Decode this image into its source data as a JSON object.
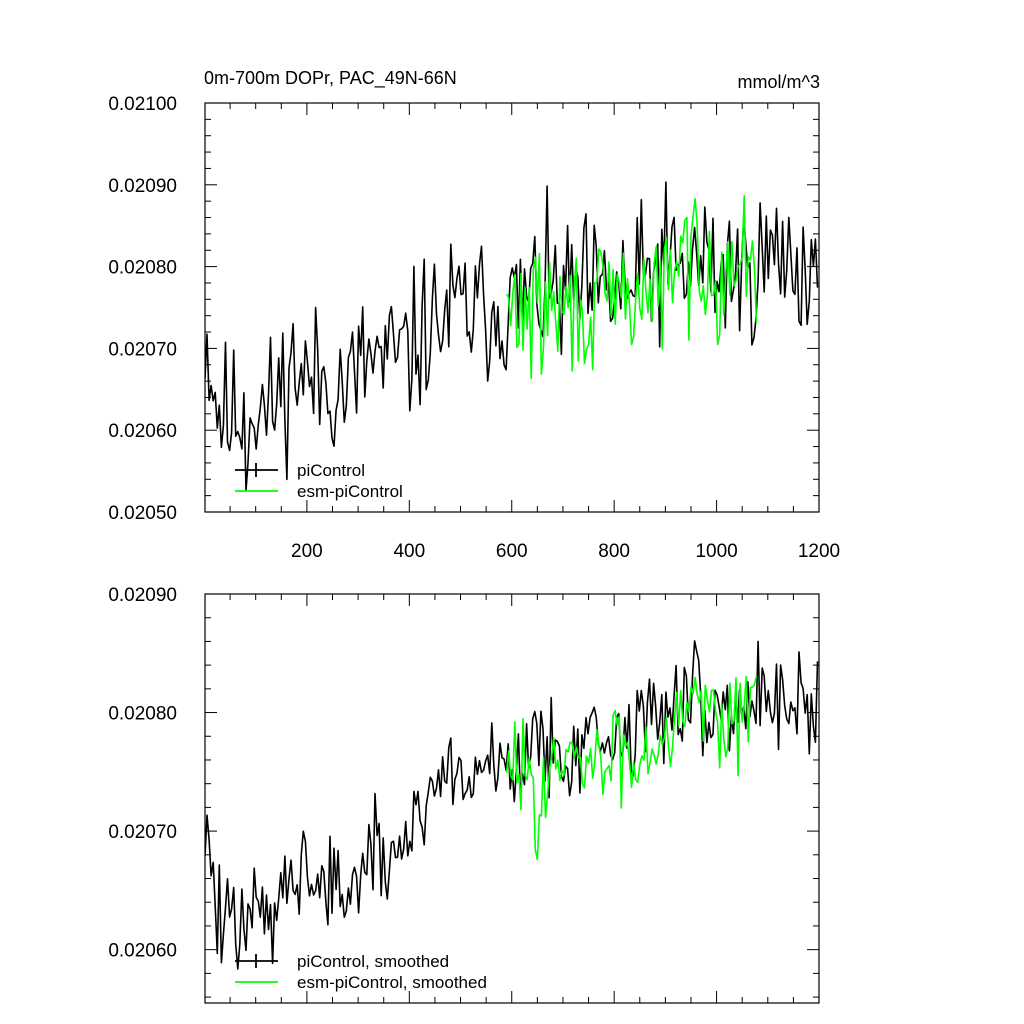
{
  "colors": {
    "piControl": "#000000",
    "esm_piControl": "#00ff00"
  },
  "chart_data": [
    {
      "type": "line",
      "title": "0m-700m DOPr, PAC_49N-66N",
      "units": "mmol/m^3",
      "xlim": [
        1,
        1200
      ],
      "ylim": [
        0.0205,
        0.021
      ],
      "yticks": [
        "0.02050",
        "0.02060",
        "0.02070",
        "0.02080",
        "0.02090",
        "0.02100"
      ],
      "xticks": [
        "200",
        "400",
        "600",
        "800",
        "1000",
        "1200"
      ],
      "legend": [
        "piControl",
        "esm-piControl"
      ],
      "series": [
        {
          "name": "piControl",
          "x_start": 1,
          "x_end": 1200,
          "knots": [
            [
              1,
              0.02072
            ],
            [
              25,
              0.02063
            ],
            [
              50,
              0.02061
            ],
            [
              75,
              0.02063
            ],
            [
              100,
              0.02063
            ],
            [
              125,
              0.02062
            ],
            [
              150,
              0.02065
            ],
            [
              175,
              0.02068
            ],
            [
              200,
              0.02066
            ],
            [
              225,
              0.02066
            ],
            [
              250,
              0.02066
            ],
            [
              275,
              0.02065
            ],
            [
              300,
              0.02067
            ],
            [
              325,
              0.02069
            ],
            [
              350,
              0.02068
            ],
            [
              375,
              0.02069
            ],
            [
              400,
              0.02069
            ],
            [
              425,
              0.02072
            ],
            [
              450,
              0.02073
            ],
            [
              475,
              0.02074
            ],
            [
              500,
              0.02075
            ],
            [
              525,
              0.02074
            ],
            [
              550,
              0.02075
            ],
            [
              575,
              0.02075
            ],
            [
              600,
              0.02075
            ],
            [
              625,
              0.02076
            ],
            [
              650,
              0.02077
            ],
            [
              675,
              0.02077
            ],
            [
              700,
              0.02076
            ],
            [
              725,
              0.02077
            ],
            [
              750,
              0.02077
            ],
            [
              775,
              0.02076
            ],
            [
              800,
              0.02077
            ],
            [
              825,
              0.02077
            ],
            [
              850,
              0.02078
            ],
            [
              875,
              0.02079
            ],
            [
              900,
              0.02081
            ],
            [
              925,
              0.02079
            ],
            [
              950,
              0.0208
            ],
            [
              975,
              0.02081
            ],
            [
              1000,
              0.02079
            ],
            [
              1025,
              0.0208
            ],
            [
              1050,
              0.02079
            ],
            [
              1075,
              0.0208
            ],
            [
              1100,
              0.02081
            ],
            [
              1125,
              0.02081
            ],
            [
              1150,
              0.02081
            ],
            [
              1175,
              0.02079
            ],
            [
              1200,
              0.0208
            ]
          ],
          "noise": 4.5e-05,
          "seed": 11,
          "min_value": 0.020526
        },
        {
          "name": "esm-piControl",
          "x_start": 590,
          "x_end": 1080,
          "knots": [
            [
              590,
              0.02074
            ],
            [
              620,
              0.02075
            ],
            [
              650,
              0.02074
            ],
            [
              680,
              0.02075
            ],
            [
              710,
              0.02074
            ],
            [
              740,
              0.02075
            ],
            [
              770,
              0.02074
            ],
            [
              800,
              0.02076
            ],
            [
              830,
              0.02076
            ],
            [
              860,
              0.02077
            ],
            [
              890,
              0.02077
            ],
            [
              920,
              0.02079
            ],
            [
              950,
              0.02082
            ],
            [
              980,
              0.02081
            ],
            [
              1010,
              0.02079
            ],
            [
              1040,
              0.0208
            ],
            [
              1080,
              0.02081
            ]
          ],
          "noise": 4e-05,
          "seed": 29
        }
      ]
    },
    {
      "type": "line",
      "title": "",
      "xlim": [
        1,
        1200
      ],
      "ylim": [
        0.020555,
        0.0209
      ],
      "yticks": [
        "0.02060",
        "0.02070",
        "0.02080",
        "0.02090"
      ],
      "xticks": [],
      "legend": [
        "piControl, smoothed",
        "esm-piControl, smoothed"
      ],
      "series": [
        {
          "name": "piControl, smoothed",
          "x_start": 1,
          "x_end": 1200,
          "knots": [
            [
              1,
              0.02071
            ],
            [
              25,
              0.02063
            ],
            [
              50,
              0.02061
            ],
            [
              75,
              0.02063
            ],
            [
              100,
              0.02063
            ],
            [
              125,
              0.02062
            ],
            [
              150,
              0.02066
            ],
            [
              175,
              0.02068
            ],
            [
              200,
              0.02066
            ],
            [
              225,
              0.02066
            ],
            [
              250,
              0.02065
            ],
            [
              275,
              0.02065
            ],
            [
              300,
              0.02066
            ],
            [
              325,
              0.02068
            ],
            [
              350,
              0.02067
            ],
            [
              375,
              0.02068
            ],
            [
              400,
              0.0207
            ],
            [
              425,
              0.02073
            ],
            [
              450,
              0.02074
            ],
            [
              475,
              0.02075
            ],
            [
              500,
              0.02075
            ],
            [
              525,
              0.02074
            ],
            [
              550,
              0.02076
            ],
            [
              575,
              0.02076
            ],
            [
              600,
              0.02076
            ],
            [
              625,
              0.02076
            ],
            [
              650,
              0.02077
            ],
            [
              675,
              0.02078
            ],
            [
              700,
              0.02077
            ],
            [
              725,
              0.02077
            ],
            [
              750,
              0.02078
            ],
            [
              775,
              0.02077
            ],
            [
              800,
              0.02078
            ],
            [
              825,
              0.02078
            ],
            [
              850,
              0.02079
            ],
            [
              875,
              0.0208
            ],
            [
              900,
              0.02081
            ],
            [
              925,
              0.0208
            ],
            [
              950,
              0.02081
            ],
            [
              975,
              0.02081
            ],
            [
              1000,
              0.0208
            ],
            [
              1025,
              0.02081
            ],
            [
              1050,
              0.0208
            ],
            [
              1075,
              0.02081
            ],
            [
              1100,
              0.02082
            ],
            [
              1125,
              0.02082
            ],
            [
              1150,
              0.02081
            ],
            [
              1175,
              0.0208
            ],
            [
              1200,
              0.02082
            ]
          ],
          "noise": 2.2e-05,
          "seed": 47
        },
        {
          "name": "esm-piControl, smoothed",
          "x_start": 590,
          "x_end": 1080,
          "knots": [
            [
              590,
              0.02074
            ],
            [
              620,
              0.02076
            ],
            [
              650,
              0.02073
            ],
            [
              680,
              0.02075
            ],
            [
              710,
              0.02075
            ],
            [
              740,
              0.02076
            ],
            [
              770,
              0.02075
            ],
            [
              800,
              0.02077
            ],
            [
              830,
              0.02076
            ],
            [
              860,
              0.02077
            ],
            [
              890,
              0.02078
            ],
            [
              920,
              0.0208
            ],
            [
              950,
              0.02082
            ],
            [
              980,
              0.02081
            ],
            [
              1010,
              0.0208
            ],
            [
              1040,
              0.0208
            ],
            [
              1080,
              0.02081
            ]
          ],
          "noise": 2e-05,
          "seed": 83
        }
      ]
    }
  ]
}
